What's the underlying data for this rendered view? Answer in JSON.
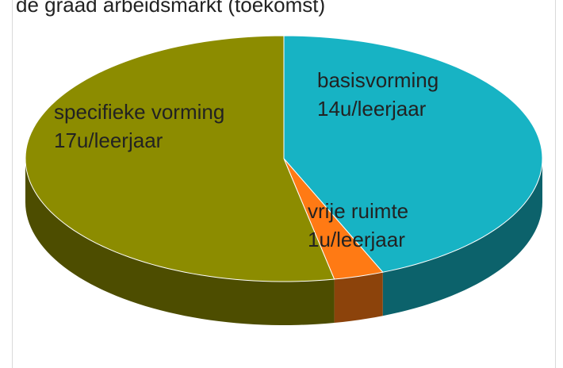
{
  "chart_data": {
    "type": "pie",
    "title": "de graad arbeidsmarkt (toekomst)",
    "categories": [
      "basisvorming",
      "vrije ruimte",
      "specifieke vorming"
    ],
    "values": [
      14,
      1,
      17
    ],
    "value_labels": [
      "14u/leerjaar",
      "1u/leerjaar",
      "17u/leerjaar"
    ],
    "colors": [
      "#17b3c4",
      "#ff7a14",
      "#8c8c00"
    ]
  }
}
